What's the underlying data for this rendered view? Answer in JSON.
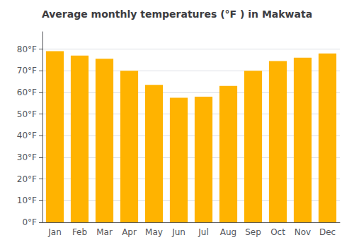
{
  "chart_data": {
    "type": "bar",
    "title": "Average monthly temperatures (°F ) in Makwata",
    "categories": [
      "Jan",
      "Feb",
      "Mar",
      "Apr",
      "May",
      "Jun",
      "Jul",
      "Aug",
      "Sep",
      "Oct",
      "Nov",
      "Dec"
    ],
    "values": [
      79,
      77,
      75.5,
      70,
      63.5,
      57.5,
      58,
      63,
      70,
      74.5,
      76,
      78
    ],
    "color": "#FFB300",
    "ylim": [
      0,
      88
    ],
    "yticks": [
      {
        "value": 0,
        "label": "0°F"
      },
      {
        "value": 10,
        "label": "10°F"
      },
      {
        "value": 20,
        "label": "20°F"
      },
      {
        "value": 30,
        "label": "30°F"
      },
      {
        "value": 40,
        "label": "40°F"
      },
      {
        "value": 50,
        "label": "50°F"
      },
      {
        "value": 60,
        "label": "60°F"
      },
      {
        "value": 70,
        "label": "70°F"
      },
      {
        "value": 80,
        "label": "80°F"
      }
    ],
    "grid": true
  }
}
